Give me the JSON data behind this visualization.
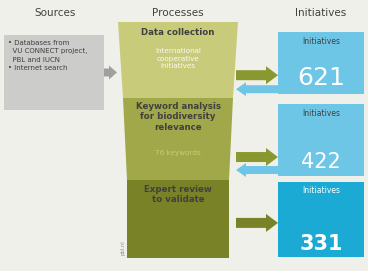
{
  "title_sources": "Sources",
  "title_processes": "Processes",
  "title_initiatives": "Initiatives",
  "source_box_color": "#c0c0c0",
  "source_text": "• Databases from\n  VU CONNECT project,\n  PBL and IUCN\n• Internet search",
  "process_color_1": "#c8cc7a",
  "process_color_2": "#a0a84a",
  "process_color_3": "#7a8228",
  "process_labels": [
    "Data collection",
    "Keyword analysis\nfor biodiversity\nrelevance",
    "Expert review\nto validate"
  ],
  "process_sublabels": [
    "International\ncooperative\ninitiatives",
    "76 keywords",
    ""
  ],
  "initiative_counts": [
    "621",
    "422",
    "331"
  ],
  "initiative_box_color_light": "#6ec6e6",
  "initiative_box_color_dark": "#1aaad4",
  "arrow_green": "#8a9830",
  "arrow_blue_light": "#6ec6e6",
  "source_arrow_color": "#a0a0a0",
  "bg_color": "#f0f0ea",
  "text_dark": "#404040",
  "text_white": "#ffffff",
  "text_light_green": "#c8cc7a",
  "watermark": "pbl.nl",
  "header_fontsize": 7.5,
  "label_fontsize": 6.2,
  "sublabel_fontsize": 5.2,
  "count_fontsize_large": 18,
  "count_fontsize_small": 15,
  "init_label_fontsize": 5.5
}
